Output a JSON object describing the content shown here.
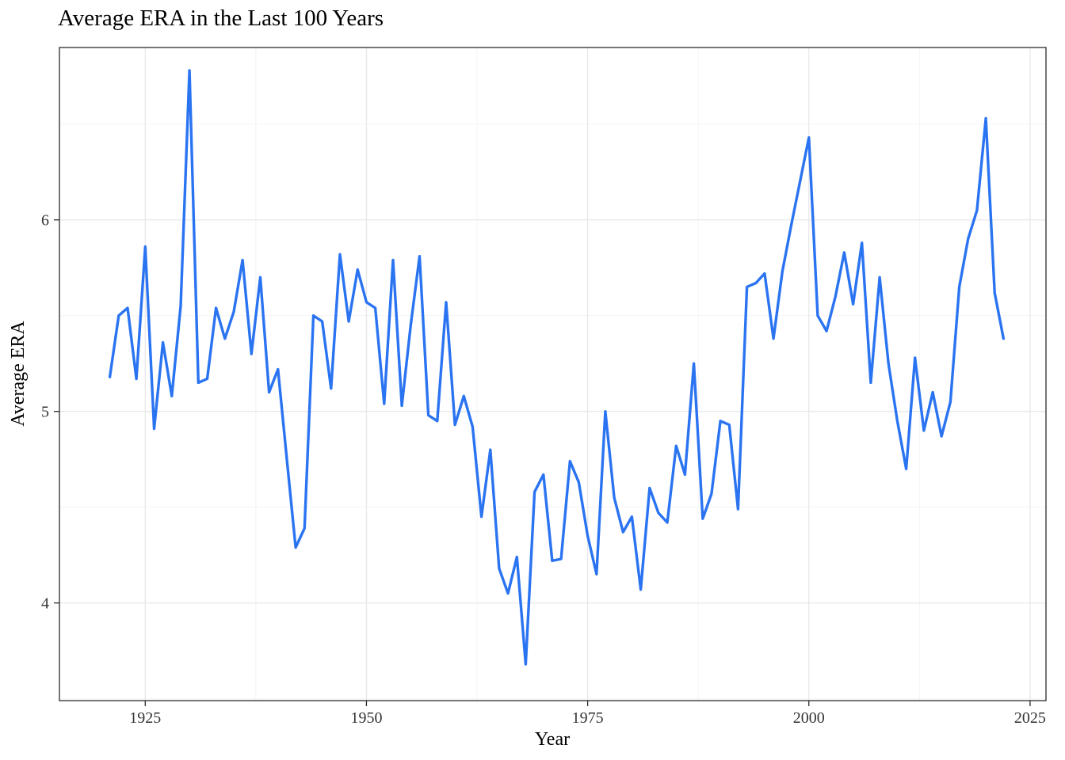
{
  "figure": {
    "background": "#ffffff",
    "text_color": "#000000",
    "tick_text_color": "#333333",
    "panel_border_color": "#2b2b2b"
  },
  "chart_data": {
    "type": "line",
    "title": "Average ERA in the Last 100 Years",
    "xlabel": "Year",
    "ylabel": "Average ERA",
    "legend_position": "none",
    "grid": "on",
    "line_color": "#2b74f1",
    "line_width": 3.4,
    "grid_major_color": "#e8e8e8",
    "grid_minor_color": "#f4f4f4",
    "xlim": [
      1915.3,
      2026.8
    ],
    "ylim": [
      3.49,
      6.9
    ],
    "x_ticks": [
      1925,
      1950,
      1975,
      2000,
      2025
    ],
    "x_minor_ticks": [
      1937.5,
      1962.5,
      1987.5,
      2012.5
    ],
    "y_ticks": [
      4,
      5,
      6
    ],
    "y_minor_ticks": [
      3.5,
      4.5,
      5.5,
      6.5
    ],
    "series": [
      {
        "name": "Average ERA",
        "x": [
          1921,
          1922,
          1923,
          1924,
          1925,
          1926,
          1927,
          1928,
          1929,
          1930,
          1931,
          1932,
          1933,
          1934,
          1935,
          1936,
          1937,
          1938,
          1939,
          1940,
          1941,
          1942,
          1943,
          1944,
          1945,
          1946,
          1947,
          1948,
          1949,
          1950,
          1951,
          1952,
          1953,
          1954,
          1955,
          1956,
          1957,
          1958,
          1959,
          1960,
          1961,
          1962,
          1963,
          1964,
          1965,
          1966,
          1967,
          1968,
          1969,
          1970,
          1971,
          1972,
          1973,
          1974,
          1975,
          1976,
          1977,
          1978,
          1979,
          1980,
          1981,
          1982,
          1983,
          1984,
          1985,
          1986,
          1987,
          1988,
          1989,
          1990,
          1991,
          1992,
          1993,
          1994,
          1995,
          1996,
          1997,
          1998,
          1999,
          2000,
          2001,
          2002,
          2003,
          2004,
          2005,
          2006,
          2007,
          2008,
          2009,
          2010,
          2011,
          2012,
          2013,
          2014,
          2015,
          2016,
          2017,
          2018,
          2019,
          2020,
          2021,
          2022
        ],
        "y": [
          5.18,
          5.5,
          5.54,
          5.17,
          5.86,
          4.91,
          5.36,
          5.08,
          5.55,
          6.78,
          5.15,
          5.17,
          5.54,
          5.38,
          5.52,
          5.79,
          5.3,
          5.7,
          5.1,
          5.22,
          4.75,
          4.29,
          4.39,
          5.5,
          5.47,
          5.12,
          5.82,
          5.47,
          5.74,
          5.57,
          5.54,
          5.04,
          5.79,
          5.03,
          5.45,
          5.81,
          4.98,
          4.95,
          5.57,
          4.93,
          5.08,
          4.92,
          4.45,
          4.8,
          4.18,
          4.05,
          4.24,
          3.68,
          4.58,
          4.67,
          4.22,
          4.23,
          4.74,
          4.63,
          4.35,
          4.15,
          5.0,
          4.55,
          4.37,
          4.45,
          4.07,
          4.6,
          4.47,
          4.42,
          4.82,
          4.67,
          5.25,
          4.44,
          4.57,
          4.95,
          4.93,
          4.49,
          5.65,
          5.67,
          5.72,
          5.38,
          5.73,
          5.97,
          6.2,
          6.43,
          5.5,
          5.42,
          5.6,
          5.83,
          5.56,
          5.88,
          5.15,
          5.7,
          5.25,
          4.95,
          4.7,
          5.28,
          4.9,
          5.1,
          4.87,
          5.05,
          5.65,
          5.9,
          6.05,
          6.53,
          5.62,
          5.38
        ]
      }
    ]
  }
}
